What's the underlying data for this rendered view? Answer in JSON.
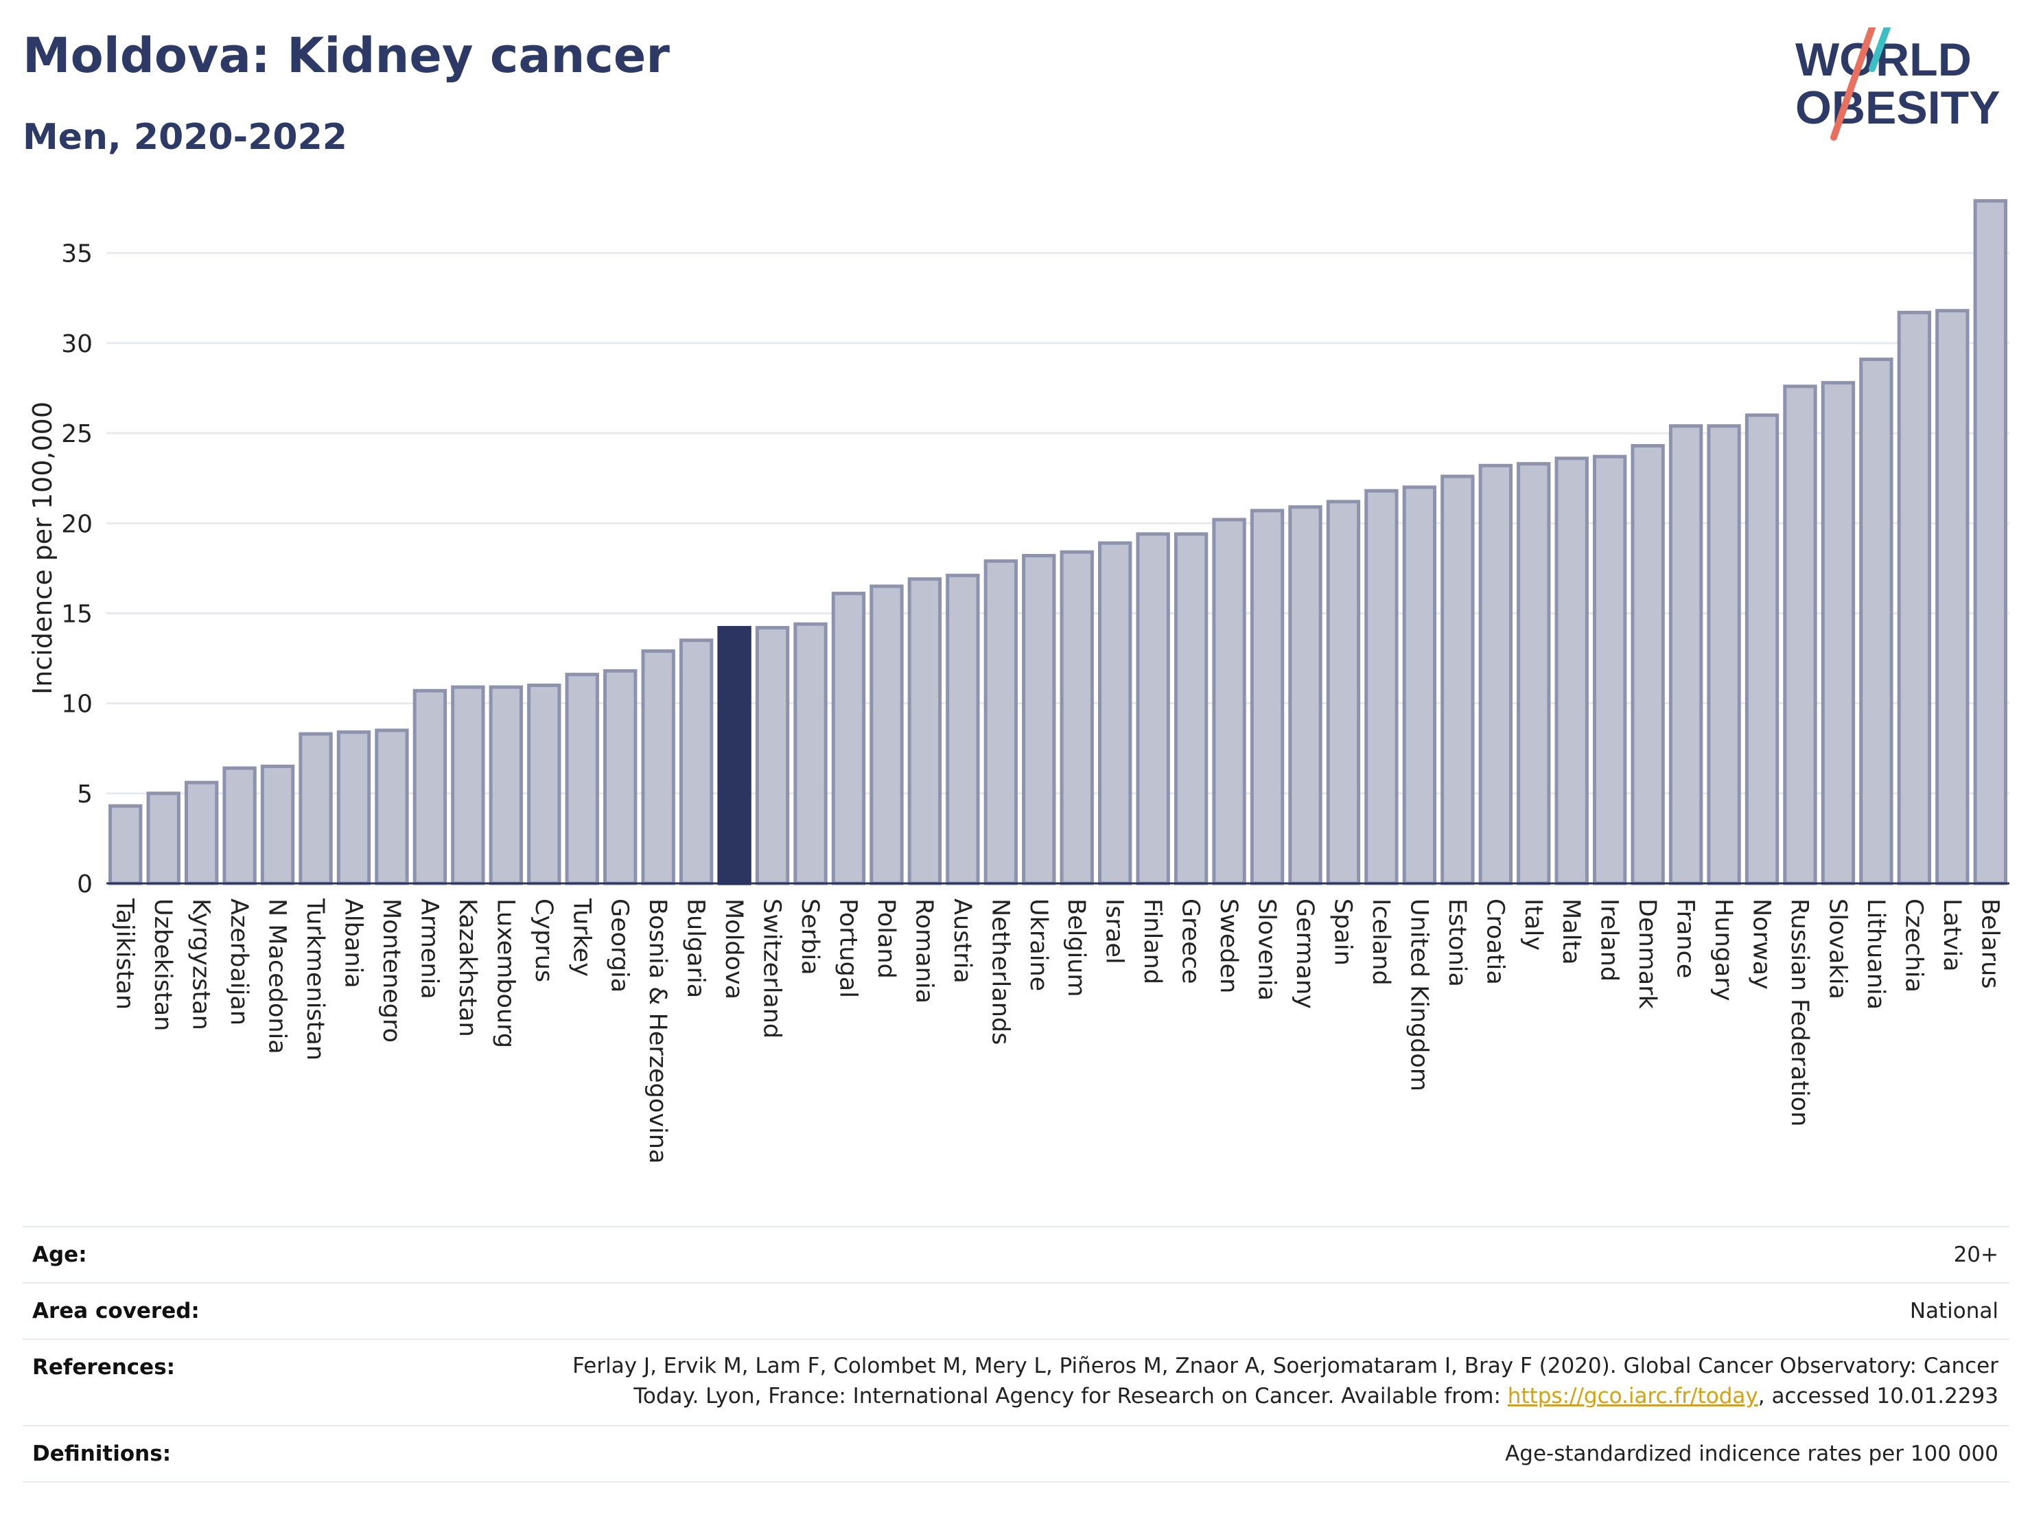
{
  "header": {
    "title": "Moldova: Kidney cancer",
    "subtitle": "Men, 2020-2022",
    "logo_line1": "WORLD",
    "logo_line2": "OBESITY"
  },
  "colors": {
    "bar_default": "#bfc2d1",
    "bar_border": "#8e93ad",
    "bar_highlight": "#2b3560",
    "title": "#2d3a66",
    "grid": "#e6e9ee",
    "link": "#d4a20c"
  },
  "chart_data": {
    "type": "bar",
    "ylabel": "Incidence per 100,000",
    "ylim": [
      0,
      38
    ],
    "yticks": [
      0,
      5,
      10,
      15,
      20,
      25,
      30,
      35
    ],
    "grid": true,
    "highlight": "Moldova",
    "categories": [
      "Tajikistan",
      "Uzbekistan",
      "Kyrgyzstan",
      "Azerbaijan",
      "N Macedonia",
      "Turkmenistan",
      "Albania",
      "Montenegro",
      "Armenia",
      "Kazakhstan",
      "Luxembourg",
      "Cyprus",
      "Turkey",
      "Georgia",
      "Bosnia & Herzegovina",
      "Bulgaria",
      "Moldova",
      "Switzerland",
      "Serbia",
      "Portugal",
      "Poland",
      "Romania",
      "Austria",
      "Netherlands",
      "Ukraine",
      "Belgium",
      "Israel",
      "Finland",
      "Greece",
      "Sweden",
      "Slovenia",
      "Germany",
      "Spain",
      "Iceland",
      "United Kingdom",
      "Estonia",
      "Croatia",
      "Italy",
      "Malta",
      "Ireland",
      "Denmark",
      "France",
      "Hungary",
      "Norway",
      "Russian Federation",
      "Slovakia",
      "Lithuania",
      "Czechia",
      "Latvia",
      "Belarus"
    ],
    "values": [
      4.3,
      5.0,
      5.6,
      6.4,
      6.5,
      8.3,
      8.4,
      8.5,
      10.7,
      10.9,
      10.9,
      11.0,
      11.6,
      11.8,
      12.9,
      13.5,
      14.2,
      14.2,
      14.4,
      16.1,
      16.5,
      16.9,
      17.1,
      17.9,
      18.2,
      18.4,
      18.9,
      19.4,
      19.4,
      20.2,
      20.7,
      20.9,
      21.2,
      21.8,
      22.0,
      22.6,
      23.2,
      23.3,
      23.6,
      23.7,
      24.3,
      25.4,
      25.4,
      26.0,
      27.6,
      27.8,
      29.1,
      31.7,
      31.8,
      37.9
    ]
  },
  "meta": {
    "rows": [
      {
        "label": "Age:",
        "value": "20+"
      },
      {
        "label": "Area covered:",
        "value": "National"
      },
      {
        "label": "References:",
        "value_line1": "Ferlay J, Ervik M, Lam F, Colombet M, Mery L, Piñeros M, Znaor A, Soerjomataram I, Bray F (2020). Global Cancer Observatory: Cancer",
        "value_line2_pre": "Today. Lyon, France: International Agency for Research on Cancer. Available from: ",
        "link": "https://gco.iarc.fr/today",
        "value_line2_post": ", accessed 10.01.2293"
      },
      {
        "label": "Definitions:",
        "value": "Age-standardized indicence rates per 100 000"
      }
    ]
  }
}
